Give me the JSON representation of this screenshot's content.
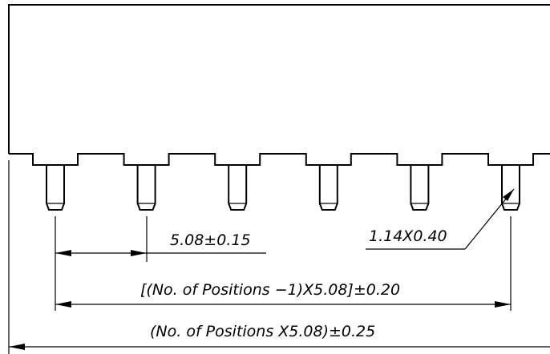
{
  "drawing": {
    "pin_count": 6,
    "dimensions": {
      "pitch": "5.08±0.15",
      "pin_size": "1.14X0.40",
      "inner_span": "[(No. of Positions −1)X5.08]±0.20",
      "overall_span": "(No. of Positions X5.08)±0.25"
    }
  }
}
